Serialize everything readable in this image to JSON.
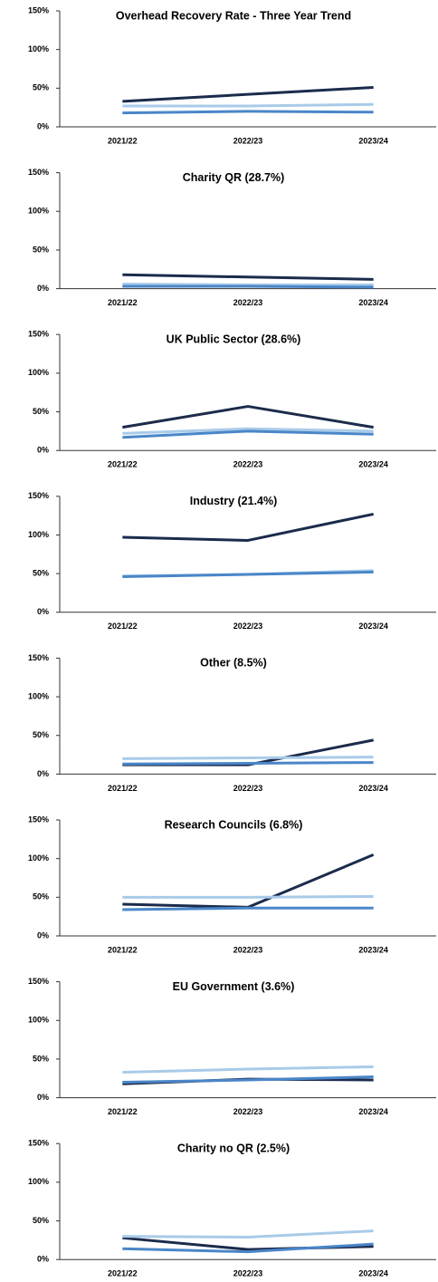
{
  "chart_data": [
    {
      "type": "line",
      "title": "Overhead Recovery Rate - Three Year Trend",
      "categories": [
        "2021/22",
        "2022/23",
        "2023/24"
      ],
      "series": [
        {
          "color": "#1b2b4b",
          "values": [
            33,
            42,
            51
          ]
        },
        {
          "color": "#a9cbe9",
          "values": [
            27,
            27,
            29
          ]
        },
        {
          "color": "#4a86c8",
          "values": [
            18,
            20,
            19
          ]
        }
      ],
      "ylim": [
        0,
        150
      ],
      "yticks": [
        {
          "value": 0,
          "label": "0%"
        },
        {
          "value": 50,
          "label": "50%"
        },
        {
          "value": 100,
          "label": "100%"
        },
        {
          "value": 150,
          "label": "150%"
        }
      ]
    },
    {
      "type": "line",
      "title": "Charity QR (28.7%)",
      "categories": [
        "2021/22",
        "2022/23",
        "2023/24"
      ],
      "series": [
        {
          "color": "#1b2b4b",
          "values": [
            18,
            15,
            12
          ]
        },
        {
          "color": "#a9cbe9",
          "values": [
            6,
            5,
            5
          ]
        },
        {
          "color": "#4a86c8",
          "values": [
            3,
            3,
            2
          ]
        }
      ],
      "ylim": [
        0,
        150
      ],
      "yticks": [
        {
          "value": 0,
          "label": "0%"
        },
        {
          "value": 50,
          "label": "50%"
        },
        {
          "value": 100,
          "label": "100%"
        },
        {
          "value": 150,
          "label": "150%"
        }
      ]
    },
    {
      "type": "line",
      "title": "UK Public Sector (28.6%)",
      "categories": [
        "2021/22",
        "2022/23",
        "2023/24"
      ],
      "series": [
        {
          "color": "#1b2b4b",
          "values": [
            30,
            57,
            30
          ]
        },
        {
          "color": "#a9cbe9",
          "values": [
            22,
            28,
            25
          ]
        },
        {
          "color": "#4a86c8",
          "values": [
            17,
            25,
            21
          ]
        }
      ],
      "ylim": [
        0,
        150
      ],
      "yticks": [
        {
          "value": 0,
          "label": "0%"
        },
        {
          "value": 50,
          "label": "50%"
        },
        {
          "value": 100,
          "label": "100%"
        },
        {
          "value": 150,
          "label": "150%"
        }
      ]
    },
    {
      "type": "line",
      "title": "Industry (21.4%)",
      "categories": [
        "2021/22",
        "2022/23",
        "2023/24"
      ],
      "series": [
        {
          "color": "#1b2b4b",
          "values": [
            97,
            93,
            127
          ]
        },
        {
          "color": "#a9cbe9",
          "values": [
            47,
            49,
            54
          ]
        },
        {
          "color": "#4a86c8",
          "values": [
            46,
            49,
            52
          ]
        }
      ],
      "ylim": [
        0,
        150
      ],
      "yticks": [
        {
          "value": 0,
          "label": "0%"
        },
        {
          "value": 50,
          "label": "50%"
        },
        {
          "value": 100,
          "label": "100%"
        },
        {
          "value": 150,
          "label": "150%"
        }
      ]
    },
    {
      "type": "line",
      "title": "Other (8.5%)",
      "categories": [
        "2021/22",
        "2022/23",
        "2023/24"
      ],
      "series": [
        {
          "color": "#1b2b4b",
          "values": [
            12,
            12,
            44
          ]
        },
        {
          "color": "#a9cbe9",
          "values": [
            20,
            21,
            22
          ]
        },
        {
          "color": "#4a86c8",
          "values": [
            13,
            14,
            15
          ]
        }
      ],
      "ylim": [
        0,
        150
      ],
      "yticks": [
        {
          "value": 0,
          "label": "0%"
        },
        {
          "value": 50,
          "label": "50%"
        },
        {
          "value": 100,
          "label": "100%"
        },
        {
          "value": 150,
          "label": "150%"
        }
      ]
    },
    {
      "type": "line",
      "title": "Research Councils (6.8%)",
      "categories": [
        "2021/22",
        "2022/23",
        "2023/24"
      ],
      "series": [
        {
          "color": "#1b2b4b",
          "values": [
            41,
            37,
            105
          ]
        },
        {
          "color": "#a9cbe9",
          "values": [
            50,
            50,
            51
          ]
        },
        {
          "color": "#4a86c8",
          "values": [
            34,
            36,
            36
          ]
        }
      ],
      "ylim": [
        0,
        150
      ],
      "yticks": [
        {
          "value": 0,
          "label": "0%"
        },
        {
          "value": 50,
          "label": "50%"
        },
        {
          "value": 100,
          "label": "100%"
        },
        {
          "value": 150,
          "label": "150%"
        }
      ]
    },
    {
      "type": "line",
      "title": "EU Government (3.6%)",
      "categories": [
        "2021/22",
        "2022/23",
        "2023/24"
      ],
      "series": [
        {
          "color": "#1b2b4b",
          "values": [
            18,
            24,
            23
          ]
        },
        {
          "color": "#a9cbe9",
          "values": [
            33,
            37,
            40
          ]
        },
        {
          "color": "#4a86c8",
          "values": [
            20,
            23,
            27
          ]
        }
      ],
      "ylim": [
        0,
        150
      ],
      "yticks": [
        {
          "value": 0,
          "label": "0%"
        },
        {
          "value": 50,
          "label": "50%"
        },
        {
          "value": 100,
          "label": "100%"
        },
        {
          "value": 150,
          "label": "150%"
        }
      ]
    },
    {
      "type": "line",
      "title": "Charity no QR (2.5%)",
      "categories": [
        "2021/22",
        "2022/23",
        "2023/24"
      ],
      "series": [
        {
          "color": "#1b2b4b",
          "values": [
            28,
            13,
            17
          ]
        },
        {
          "color": "#a9cbe9",
          "values": [
            30,
            29,
            37
          ]
        },
        {
          "color": "#4a86c8",
          "values": [
            14,
            10,
            20
          ]
        }
      ],
      "ylim": [
        0,
        150
      ],
      "yticks": [
        {
          "value": 0,
          "label": "0%"
        },
        {
          "value": 50,
          "label": "50%"
        },
        {
          "value": 100,
          "label": "100%"
        },
        {
          "value": 150,
          "label": "150%"
        }
      ]
    }
  ]
}
